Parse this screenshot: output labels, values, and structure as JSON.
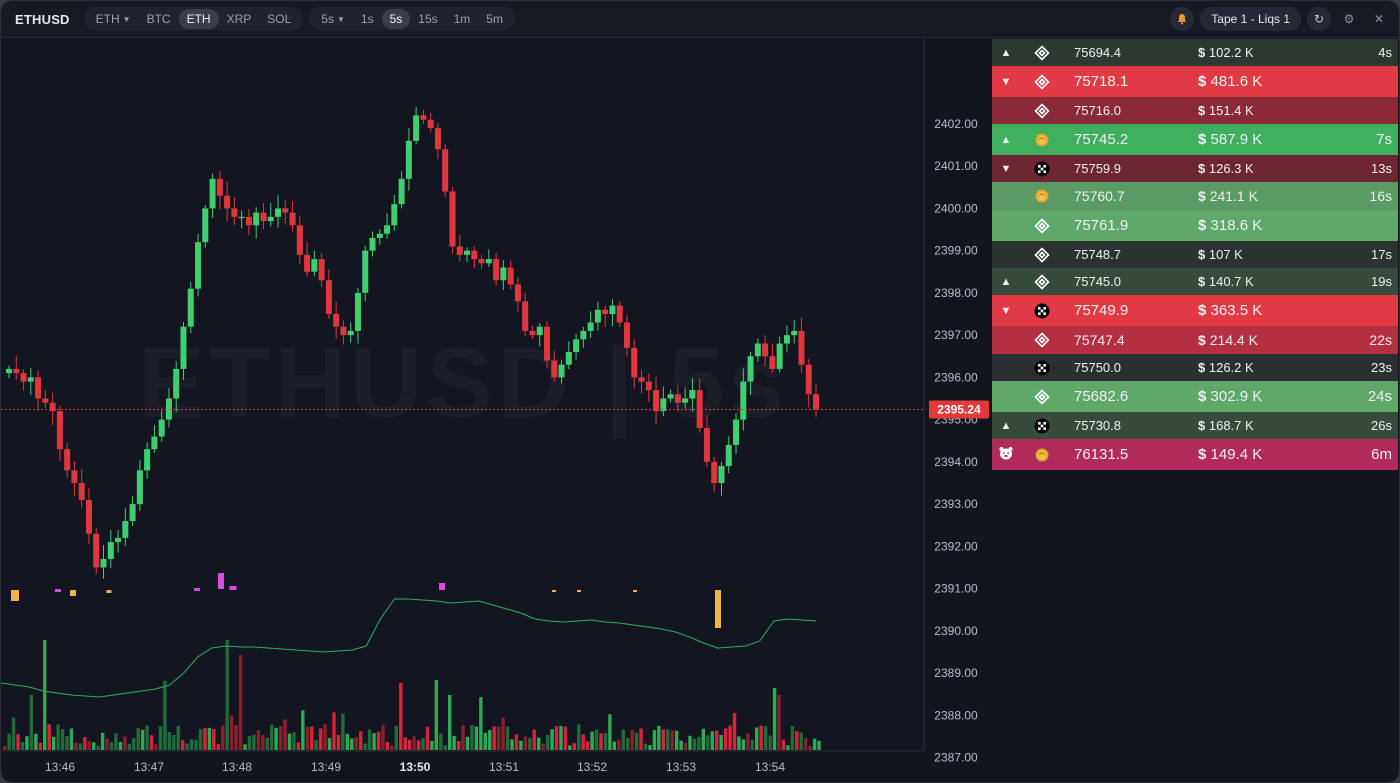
{
  "app": {
    "title": "ETHUSD"
  },
  "symbols": {
    "items": [
      {
        "label": "ETH",
        "dropdown": true,
        "active": false
      },
      {
        "label": "BTC",
        "dropdown": false,
        "active": false
      },
      {
        "label": "ETH",
        "dropdown": false,
        "active": true
      },
      {
        "label": "XRP",
        "dropdown": false,
        "active": false
      },
      {
        "label": "SOL",
        "dropdown": false,
        "active": false
      }
    ]
  },
  "intervals": {
    "items": [
      {
        "label": "5s",
        "dropdown": true,
        "active": false
      },
      {
        "label": "1s",
        "dropdown": false,
        "active": false
      },
      {
        "label": "5s",
        "dropdown": false,
        "active": true
      },
      {
        "label": "15s",
        "dropdown": false,
        "active": false
      },
      {
        "label": "1m",
        "dropdown": false,
        "active": false
      },
      {
        "label": "5m",
        "dropdown": false,
        "active": false
      }
    ]
  },
  "header_right": {
    "alert_icon": "bell-icon",
    "tape_label": "Tape 1 - Liqs 1",
    "refresh_icon": "refresh-icon",
    "settings_icon": "gear-icon",
    "close_icon": "close-icon"
  },
  "colors": {
    "up": "#3ecf71",
    "down": "#e2363f",
    "volume_line": "#2fb05a",
    "marker_pink": "#d94be6",
    "marker_orange": "#f5b04a",
    "price_label_bg": "#e03a3a"
  },
  "chart_data": {
    "type": "candlestick",
    "title": "",
    "watermark": "ETHUSD | 5s",
    "last_price": "2395.24",
    "y_axis": {
      "range": [
        2386.8,
        2403.3
      ],
      "ticks": [
        "2402.00",
        "2401.00",
        "2400.00",
        "2399.00",
        "2398.00",
        "2397.00",
        "2396.00",
        "2395.00",
        "2394.00",
        "2393.00",
        "2392.00",
        "2391.00",
        "2390.00",
        "2389.00",
        "2388.00",
        "2387.00"
      ]
    },
    "x_axis": {
      "ticks": [
        {
          "label": "13:46",
          "bold": false
        },
        {
          "label": "13:47",
          "bold": false
        },
        {
          "label": "13:48",
          "bold": false
        },
        {
          "label": "13:49",
          "bold": false
        },
        {
          "label": "13:50",
          "bold": true
        },
        {
          "label": "13:51",
          "bold": false
        },
        {
          "label": "13:52",
          "bold": false
        },
        {
          "label": "13:53",
          "bold": false
        },
        {
          "label": "13:54",
          "bold": false
        }
      ]
    },
    "close": [
      2396.2,
      2396.1,
      2395.9,
      2396.0,
      2395.5,
      2395.4,
      2395.2,
      2394.3,
      2393.8,
      2393.5,
      2393.1,
      2392.3,
      2391.5,
      2391.7,
      2392.1,
      2392.2,
      2392.6,
      2393.0,
      2393.8,
      2394.3,
      2394.6,
      2395.0,
      2395.5,
      2396.2,
      2397.2,
      2398.1,
      2399.2,
      2400.0,
      2400.7,
      2400.3,
      2400.0,
      2399.8,
      2399.8,
      2399.6,
      2399.9,
      2399.7,
      2399.8,
      2400.0,
      2399.9,
      2399.6,
      2398.9,
      2398.5,
      2398.8,
      2398.3,
      2397.5,
      2397.2,
      2397.0,
      2397.1,
      2398.0,
      2399.0,
      2399.3,
      2399.4,
      2399.6,
      2400.1,
      2400.7,
      2401.6,
      2402.2,
      2402.1,
      2401.9,
      2401.4,
      2400.4,
      2399.1,
      2398.9,
      2399.0,
      2398.8,
      2398.7,
      2398.8,
      2398.3,
      2398.6,
      2398.2,
      2397.8,
      2397.1,
      2397.0,
      2397.2,
      2396.4,
      2396.0,
      2396.3,
      2396.6,
      2396.9,
      2397.1,
      2397.3,
      2397.6,
      2397.5,
      2397.7,
      2397.3,
      2396.7,
      2396.0,
      2395.9,
      2395.7,
      2395.2,
      2395.5,
      2395.6,
      2395.4,
      2395.5,
      2395.7,
      2394.8,
      2394.0,
      2393.5,
      2393.9,
      2394.4,
      2395.0,
      2395.9,
      2396.5,
      2396.8,
      2396.5,
      2396.2,
      2396.8,
      2397.0,
      2397.1,
      2396.3,
      2395.6,
      2395.24
    ]
  },
  "tape": {
    "rows": [
      {
        "arrow": "▲",
        "icon": "binance-icon",
        "price": "75694.4",
        "dollar": "$",
        "amount": "102.2 K",
        "age": "4s",
        "bg": "#2c3830",
        "size": "s"
      },
      {
        "arrow": "▼",
        "icon": "binance-icon",
        "price": "75718.1",
        "dollar": "$",
        "amount": "481.6 K",
        "age": "",
        "bg": "#e23a44",
        "size": "l"
      },
      {
        "arrow": "",
        "icon": "binance-icon",
        "price": "75716.0",
        "dollar": "$",
        "amount": "151.4 K",
        "age": "",
        "bg": "#8a2a38",
        "size": "s"
      },
      {
        "arrow": "▲",
        "icon": "coin-gold-icon",
        "price": "75745.2",
        "dollar": "$",
        "amount": "587.9 K",
        "age": "7s",
        "bg": "#3fae5f",
        "size": "l"
      },
      {
        "arrow": "▼",
        "icon": "okx-icon",
        "price": "75759.9",
        "dollar": "$",
        "amount": "126.3 K",
        "age": "13s",
        "bg": "#6d2631",
        "size": "s"
      },
      {
        "arrow": "",
        "icon": "coin-gold-icon",
        "price": "75760.7",
        "dollar": "$",
        "amount": "241.1 K",
        "age": "16s",
        "bg": "#5a9a64",
        "size": "m"
      },
      {
        "arrow": "",
        "icon": "binance-icon",
        "price": "75761.9",
        "dollar": "$",
        "amount": "318.6 K",
        "age": "",
        "bg": "#5fa86a",
        "size": "l"
      },
      {
        "arrow": "",
        "icon": "binance-icon",
        "price": "75748.7",
        "dollar": "$",
        "amount": "107 K",
        "age": "17s",
        "bg": "#2b3330",
        "size": "s"
      },
      {
        "arrow": "▲",
        "icon": "binance-icon",
        "price": "75745.0",
        "dollar": "$",
        "amount": "140.7 K",
        "age": "19s",
        "bg": "#374b3c",
        "size": "s"
      },
      {
        "arrow": "▼",
        "icon": "okx-icon",
        "price": "75749.9",
        "dollar": "$",
        "amount": "363.5 K",
        "age": "",
        "bg": "#e23a44",
        "size": "l"
      },
      {
        "arrow": "",
        "icon": "binance-icon",
        "price": "75747.4",
        "dollar": "$",
        "amount": "214.4 K",
        "age": "22s",
        "bg": "#b43040",
        "size": "m"
      },
      {
        "arrow": "",
        "icon": "okx-icon",
        "price": "75750.0",
        "dollar": "$",
        "amount": "126.2 K",
        "age": "23s",
        "bg": "#2b2f33",
        "size": "s"
      },
      {
        "arrow": "",
        "icon": "binance-icon",
        "price": "75682.6",
        "dollar": "$",
        "amount": "302.9 K",
        "age": "24s",
        "bg": "#5fa86a",
        "size": "l"
      },
      {
        "arrow": "▲",
        "icon": "okx-icon",
        "price": "75730.8",
        "dollar": "$",
        "amount": "168.7 K",
        "age": "26s",
        "bg": "#374b3c",
        "size": "s"
      },
      {
        "arrow": "bear",
        "icon": "coin-gold-icon",
        "price": "76131.5",
        "dollar": "$",
        "amount": "149.4 K",
        "age": "6m",
        "bg": "#b12b5a",
        "size": "l"
      }
    ]
  }
}
